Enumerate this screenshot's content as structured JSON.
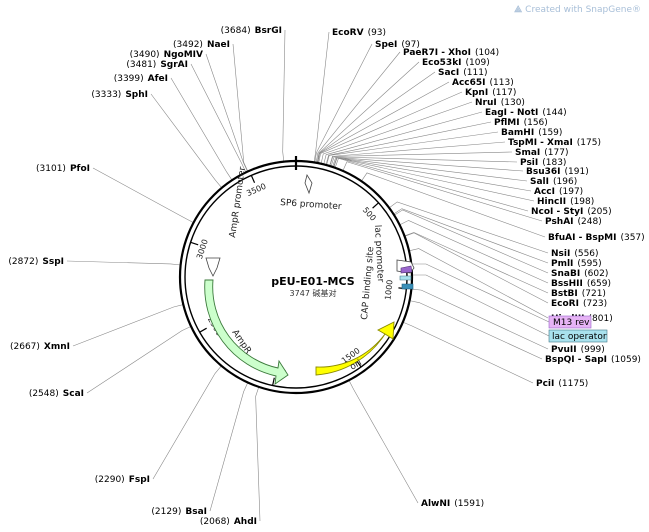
{
  "watermark": {
    "text": "Created with SnapGene®"
  },
  "plasmid": {
    "name": "pEU-E01-MCS",
    "size_text": "3747 碱基对",
    "length": 3747
  },
  "ticks": [
    {
      "pos": 500,
      "label": "500"
    },
    {
      "pos": 1000,
      "label": "1000"
    },
    {
      "pos": 1500,
      "label": "1500"
    },
    {
      "pos": 2000,
      "label": "2000"
    },
    {
      "pos": 2500,
      "label": "2500"
    },
    {
      "pos": 3000,
      "label": "3000"
    },
    {
      "pos": 3500,
      "label": "3500"
    }
  ],
  "sites_right": [
    {
      "name": "EcoRV",
      "pos": "(93)",
      "p": 93
    },
    {
      "name": "SpeI",
      "pos": "(97)",
      "p": 97
    },
    {
      "name": "PaeR7I - XhoI",
      "pos": "(104)",
      "p": 104
    },
    {
      "name": "Eco53kI",
      "pos": "(109)",
      "p": 109
    },
    {
      "name": "SacI",
      "pos": "(111)",
      "p": 111
    },
    {
      "name": "Acc65I",
      "pos": "(113)",
      "p": 113
    },
    {
      "name": "KpnI",
      "pos": "(117)",
      "p": 117
    },
    {
      "name": "NruI",
      "pos": "(130)",
      "p": 130
    },
    {
      "name": "EagI - NotI",
      "pos": "(144)",
      "p": 144
    },
    {
      "name": "PflMI",
      "pos": "(156)",
      "p": 156
    },
    {
      "name": "BamHI",
      "pos": "(159)",
      "p": 159
    },
    {
      "name": "TspMI - XmaI",
      "pos": "(175)",
      "p": 175
    },
    {
      "name": "SmaI",
      "pos": "(177)",
      "p": 177
    },
    {
      "name": "PsiI",
      "pos": "(183)",
      "p": 183
    },
    {
      "name": "Bsu36I",
      "pos": "(191)",
      "p": 191
    },
    {
      "name": "SalI",
      "pos": "(196)",
      "p": 196
    },
    {
      "name": "AccI",
      "pos": "(197)",
      "p": 197
    },
    {
      "name": "HincII",
      "pos": "(198)",
      "p": 198
    },
    {
      "name": "NcoI - StyI",
      "pos": "(205)",
      "p": 205
    },
    {
      "name": "PshAI",
      "pos": "(248)",
      "p": 248
    },
    {
      "name": "BfuAI - BspMI",
      "pos": "(357)",
      "p": 357
    },
    {
      "name": "NsiI",
      "pos": "(556)",
      "p": 556
    },
    {
      "name": "PmlI",
      "pos": "(595)",
      "p": 595
    },
    {
      "name": "SnaBI",
      "pos": "(602)",
      "p": 602
    },
    {
      "name": "BssHII",
      "pos": "(659)",
      "p": 659
    },
    {
      "name": "BstBI",
      "pos": "(721)",
      "p": 721
    },
    {
      "name": "EcoRI",
      "pos": "(723)",
      "p": 723
    },
    {
      "name": "HindIII",
      "pos": "(801)",
      "p": 801
    },
    {
      "name": "PvuII",
      "pos": "(999)",
      "p": 999
    },
    {
      "name": "BspQI - SapI",
      "pos": "(1059)",
      "p": 1059
    },
    {
      "name": "PciI",
      "pos": "(1175)",
      "p": 1175
    },
    {
      "name": "AlwNI",
      "pos": "(1591)",
      "p": 1591
    }
  ],
  "sites_left": [
    {
      "name": "BsrGI",
      "pos": "(3684)",
      "p": 3684
    },
    {
      "name": "NaeI",
      "pos": "(3492)",
      "p": 3492
    },
    {
      "name": "NgoMIV",
      "pos": "(3490)",
      "p": 3490
    },
    {
      "name": "SgrAI",
      "pos": "(3481)",
      "p": 3481
    },
    {
      "name": "AfeI",
      "pos": "(3399)",
      "p": 3399
    },
    {
      "name": "SphI",
      "pos": "(3333)",
      "p": 3333
    },
    {
      "name": "PfoI",
      "pos": "(3101)",
      "p": 3101
    },
    {
      "name": "SspI",
      "pos": "(2872)",
      "p": 2872
    },
    {
      "name": "XmnI",
      "pos": "(2667)",
      "p": 2667
    },
    {
      "name": "ScaI",
      "pos": "(2548)",
      "p": 2548
    },
    {
      "name": "FspI",
      "pos": "(2290)",
      "p": 2290
    },
    {
      "name": "BsaI",
      "pos": "(2129)",
      "p": 2129
    },
    {
      "name": "AhdI",
      "pos": "(2068)",
      "p": 2068
    }
  ],
  "features": [
    {
      "name": "SP6 promoter",
      "color": "#ffffff"
    },
    {
      "name": "lac promoter",
      "color": "#ffffff"
    },
    {
      "name": "CAP binding site",
      "color": "#3a8fb7"
    },
    {
      "name": "AmpR promoter",
      "color": "#ffffff"
    },
    {
      "name": "AmpR",
      "color": "#ccffcc"
    },
    {
      "name": "ori",
      "color": "#ffff00"
    }
  ],
  "boxes": [
    {
      "name": "M13 rev",
      "color": "#e6b3f5"
    },
    {
      "name": "lac operator",
      "color": "#a9e2ee"
    }
  ]
}
